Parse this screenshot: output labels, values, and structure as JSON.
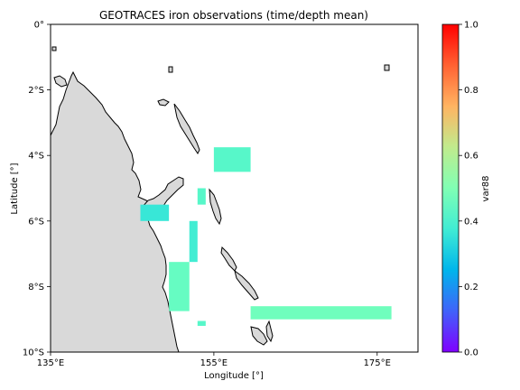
{
  "title": "GEOTRACES iron observations (time/depth mean)",
  "xlabel": "Longitude [°]",
  "ylabel": "Latitude [°]",
  "x_ticks": [
    {
      "value": 135,
      "label": "135°E"
    },
    {
      "value": 155,
      "label": "155°E"
    },
    {
      "value": 175,
      "label": "175°E"
    }
  ],
  "y_ticks": [
    {
      "value": 0,
      "label": "0°"
    },
    {
      "value": -2,
      "label": "2°S"
    },
    {
      "value": -4,
      "label": "4°S"
    },
    {
      "value": -6,
      "label": "6°S"
    },
    {
      "value": -8,
      "label": "8°S"
    },
    {
      "value": -10,
      "label": "10°S"
    }
  ],
  "colorbar": {
    "label": "var88",
    "range": [
      0.0,
      1.0
    ],
    "ticks": [
      "0.0",
      "0.2",
      "0.4",
      "0.6",
      "0.8",
      "1.0"
    ],
    "colormap": "rainbow"
  },
  "chart_data": {
    "type": "heatmap",
    "title": "GEOTRACES iron observations (time/depth mean)",
    "xlabel": "Longitude [°]",
    "ylabel": "Latitude [°]",
    "xlim": [
      135,
      180
    ],
    "ylim": [
      -10,
      0
    ],
    "land_color": "#d9d9d9",
    "colorbar_label": "var88",
    "clim": [
      0.0,
      1.0
    ],
    "cells": [
      {
        "lon_min": 155.0,
        "lon_max": 159.5,
        "lat_min": -4.5,
        "lat_max": -3.75,
        "value": 0.42
      },
      {
        "lon_min": 153.0,
        "lon_max": 154.0,
        "lat_min": -5.5,
        "lat_max": -5.0,
        "value": 0.42
      },
      {
        "lon_min": 146.0,
        "lon_max": 149.5,
        "lat_min": -6.0,
        "lat_max": -5.5,
        "value": 0.36
      },
      {
        "lon_min": 152.0,
        "lon_max": 153.0,
        "lat_min": -7.25,
        "lat_max": -6.0,
        "value": 0.38
      },
      {
        "lon_min": 149.5,
        "lon_max": 152.0,
        "lat_min": -8.75,
        "lat_max": -7.25,
        "value": 0.45
      },
      {
        "lon_min": 159.5,
        "lon_max": 176.75,
        "lat_min": -9.0,
        "lat_max": -8.6,
        "value": 0.47
      },
      {
        "lon_min": 153.0,
        "lon_max": 154.0,
        "lat_min": -9.2,
        "lat_max": -9.05,
        "value": 0.42
      }
    ]
  }
}
